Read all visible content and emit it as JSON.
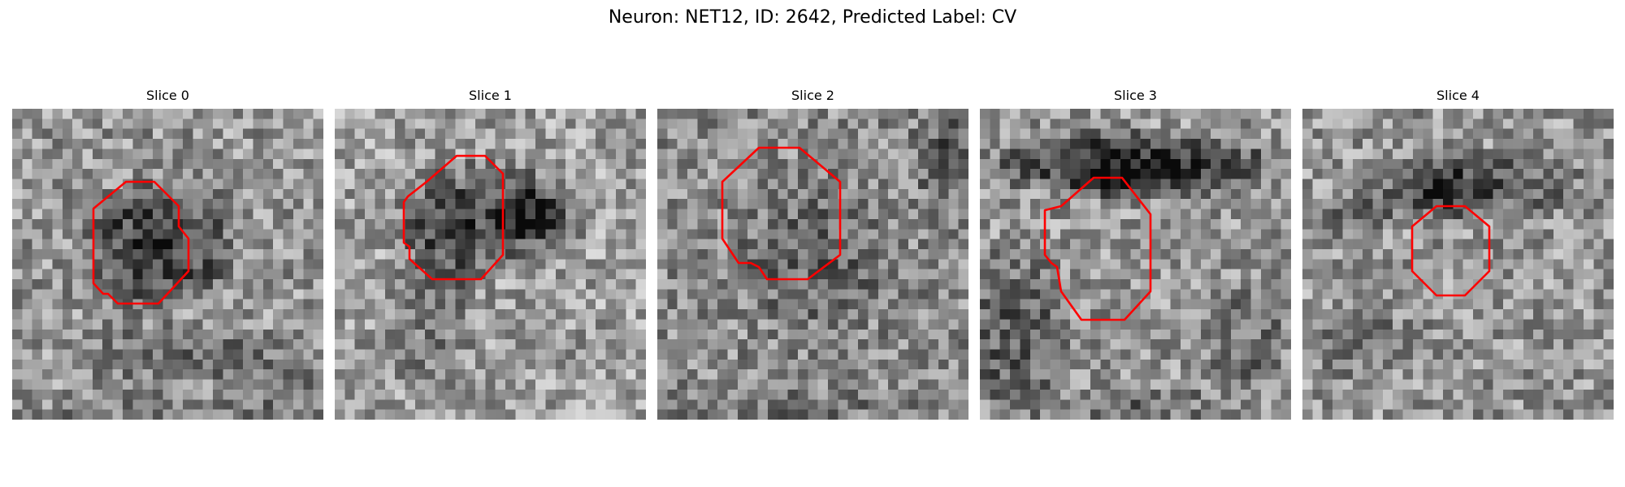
{
  "figure": {
    "title": "Neuron: NET12, ID: 2642, Predicted Label: CV"
  },
  "panels": [
    {
      "title": "Slice 0"
    },
    {
      "title": "Slice 1"
    },
    {
      "title": "Slice 2"
    },
    {
      "title": "Slice 3"
    },
    {
      "title": "Slice 4"
    }
  ],
  "colors": {
    "contour": "#ff0000",
    "background": "#ffffff"
  },
  "image_style": "grayscale pixelated microscopy patch with red octagonal contour"
}
